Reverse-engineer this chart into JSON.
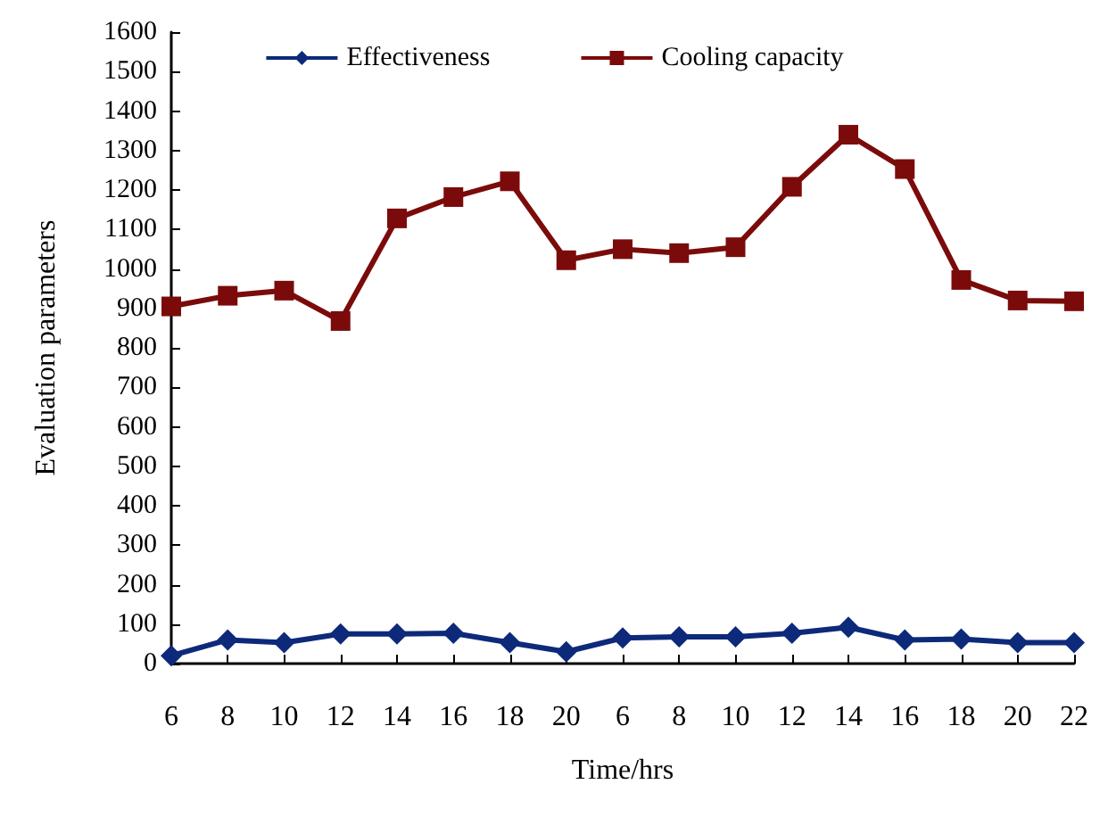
{
  "chart_data": {
    "type": "line",
    "xlabel": "Time/hrs",
    "ylabel": "Evaluation parameters",
    "categories": [
      "6",
      "8",
      "10",
      "12",
      "14",
      "16",
      "18",
      "20",
      "6",
      "8",
      "10",
      "12",
      "14",
      "16",
      "18",
      "20",
      "22"
    ],
    "series": [
      {
        "name": "Effectiveness",
        "color": "#0d2a7a",
        "marker": "diamond",
        "values": [
          20,
          60,
          53,
          75,
          75,
          77,
          53,
          30,
          65,
          68,
          68,
          77,
          92,
          60,
          62,
          53,
          53
        ]
      },
      {
        "name": "Cooling capacity",
        "color": "#7b0b0b",
        "marker": "square",
        "values": [
          905,
          932,
          945,
          868,
          1128,
          1182,
          1222,
          1022,
          1050,
          1040,
          1055,
          1208,
          1340,
          1253,
          972,
          920,
          918
        ]
      }
    ],
    "ylim": [
      0,
      1600
    ],
    "yticks": [
      0,
      100,
      200,
      300,
      400,
      500,
      600,
      700,
      800,
      900,
      1000,
      1100,
      1200,
      1300,
      1400,
      1500,
      1600
    ],
    "grid": false,
    "legend": "top",
    "line_style": "solid"
  }
}
